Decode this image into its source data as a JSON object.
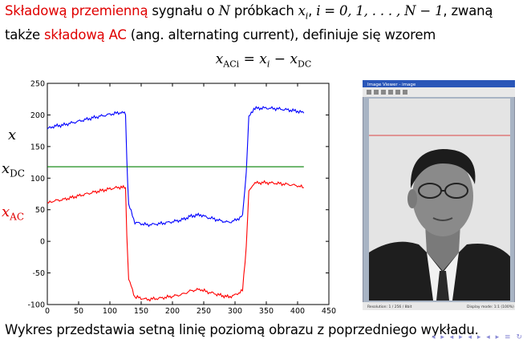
{
  "intro": {
    "term1": "Składową przemienną",
    "t2": " sygnału o ",
    "N": "N",
    "t3": " próbkach ",
    "xi": "x",
    "xi_sub": "i",
    "t4": ", ",
    "range": "i = 0, 1, . . . , N − 1",
    "t5": ", zwaną",
    "t6": "także ",
    "term2": "składową AC",
    "t7": " (ang. alternating current), definiuje się wzorem"
  },
  "formula": {
    "lhs": "x",
    "lhs_sub": "ACi",
    "eq": " = ",
    "x": "x",
    "x_sub": "i",
    "minus": " − ",
    "dc": "x",
    "dc_sub": "DC"
  },
  "labels": {
    "x": "x",
    "xdc": "x",
    "xdc_sub": "DC",
    "xac": "x",
    "xac_sub": "AC"
  },
  "caption": "Wykres przedstawia setną linię poziomą obrazu z poprzedniego wykładu.",
  "photo": {
    "window_title": "Image Viewer - image",
    "status_left": "Resolution: 1 / 256 / 8bit",
    "status_right": "Display mode: 1:1 (100%)"
  },
  "colors": {
    "accent": "#e00000",
    "series_x": "#0000ff",
    "series_dc": "#007f00",
    "series_ac": "#ff0000"
  },
  "chart_data": {
    "type": "line",
    "title": "",
    "xlabel": "",
    "ylabel": "",
    "xlim": [
      0,
      450
    ],
    "ylim": [
      -100,
      250
    ],
    "xticks": [
      0,
      50,
      100,
      150,
      200,
      250,
      300,
      350,
      400,
      450
    ],
    "yticks": [
      -100,
      -50,
      0,
      50,
      100,
      150,
      200,
      250
    ],
    "grid": false,
    "series": [
      {
        "name": "x",
        "color": "#0000ff",
        "x": [
          0,
          10,
          25,
          50,
          75,
          100,
          118,
          125,
          127,
          130,
          140,
          160,
          180,
          200,
          215,
          230,
          245,
          255,
          265,
          275,
          290,
          300,
          312,
          318,
          322,
          330,
          345,
          365,
          385,
          400,
          410
        ],
        "y": [
          178,
          182,
          184,
          190,
          196,
          201,
          204,
          202,
          130,
          58,
          30,
          26,
          28,
          31,
          34,
          40,
          42,
          38,
          36,
          33,
          30,
          33,
          40,
          110,
          196,
          210,
          211,
          210,
          208,
          206,
          203
        ]
      },
      {
        "name": "x_DC",
        "color": "#007f00",
        "x": [
          0,
          410
        ],
        "y": [
          118,
          118
        ]
      },
      {
        "name": "x_AC",
        "color": "#ff0000",
        "x": [
          0,
          10,
          25,
          50,
          75,
          100,
          118,
          125,
          127,
          130,
          140,
          160,
          180,
          200,
          215,
          230,
          245,
          255,
          265,
          275,
          290,
          300,
          312,
          318,
          322,
          330,
          345,
          365,
          385,
          400,
          410
        ],
        "y": [
          60,
          64,
          66,
          72,
          78,
          83,
          86,
          84,
          12,
          -60,
          -88,
          -92,
          -90,
          -87,
          -84,
          -78,
          -76,
          -80,
          -82,
          -85,
          -88,
          -85,
          -78,
          -8,
          78,
          92,
          93,
          92,
          90,
          88,
          85
        ]
      }
    ]
  }
}
